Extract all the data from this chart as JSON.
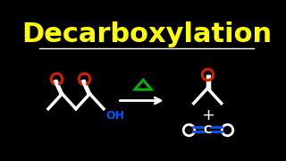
{
  "title": "Decarboxylation",
  "title_color": "#FFFF00",
  "title_fontsize": 22,
  "bg_color": "#000000",
  "line_color": "#FFFFFF",
  "red_color": "#CC2200",
  "blue_color": "#0055FF",
  "green_color": "#00BB00",
  "lw": 2.5
}
